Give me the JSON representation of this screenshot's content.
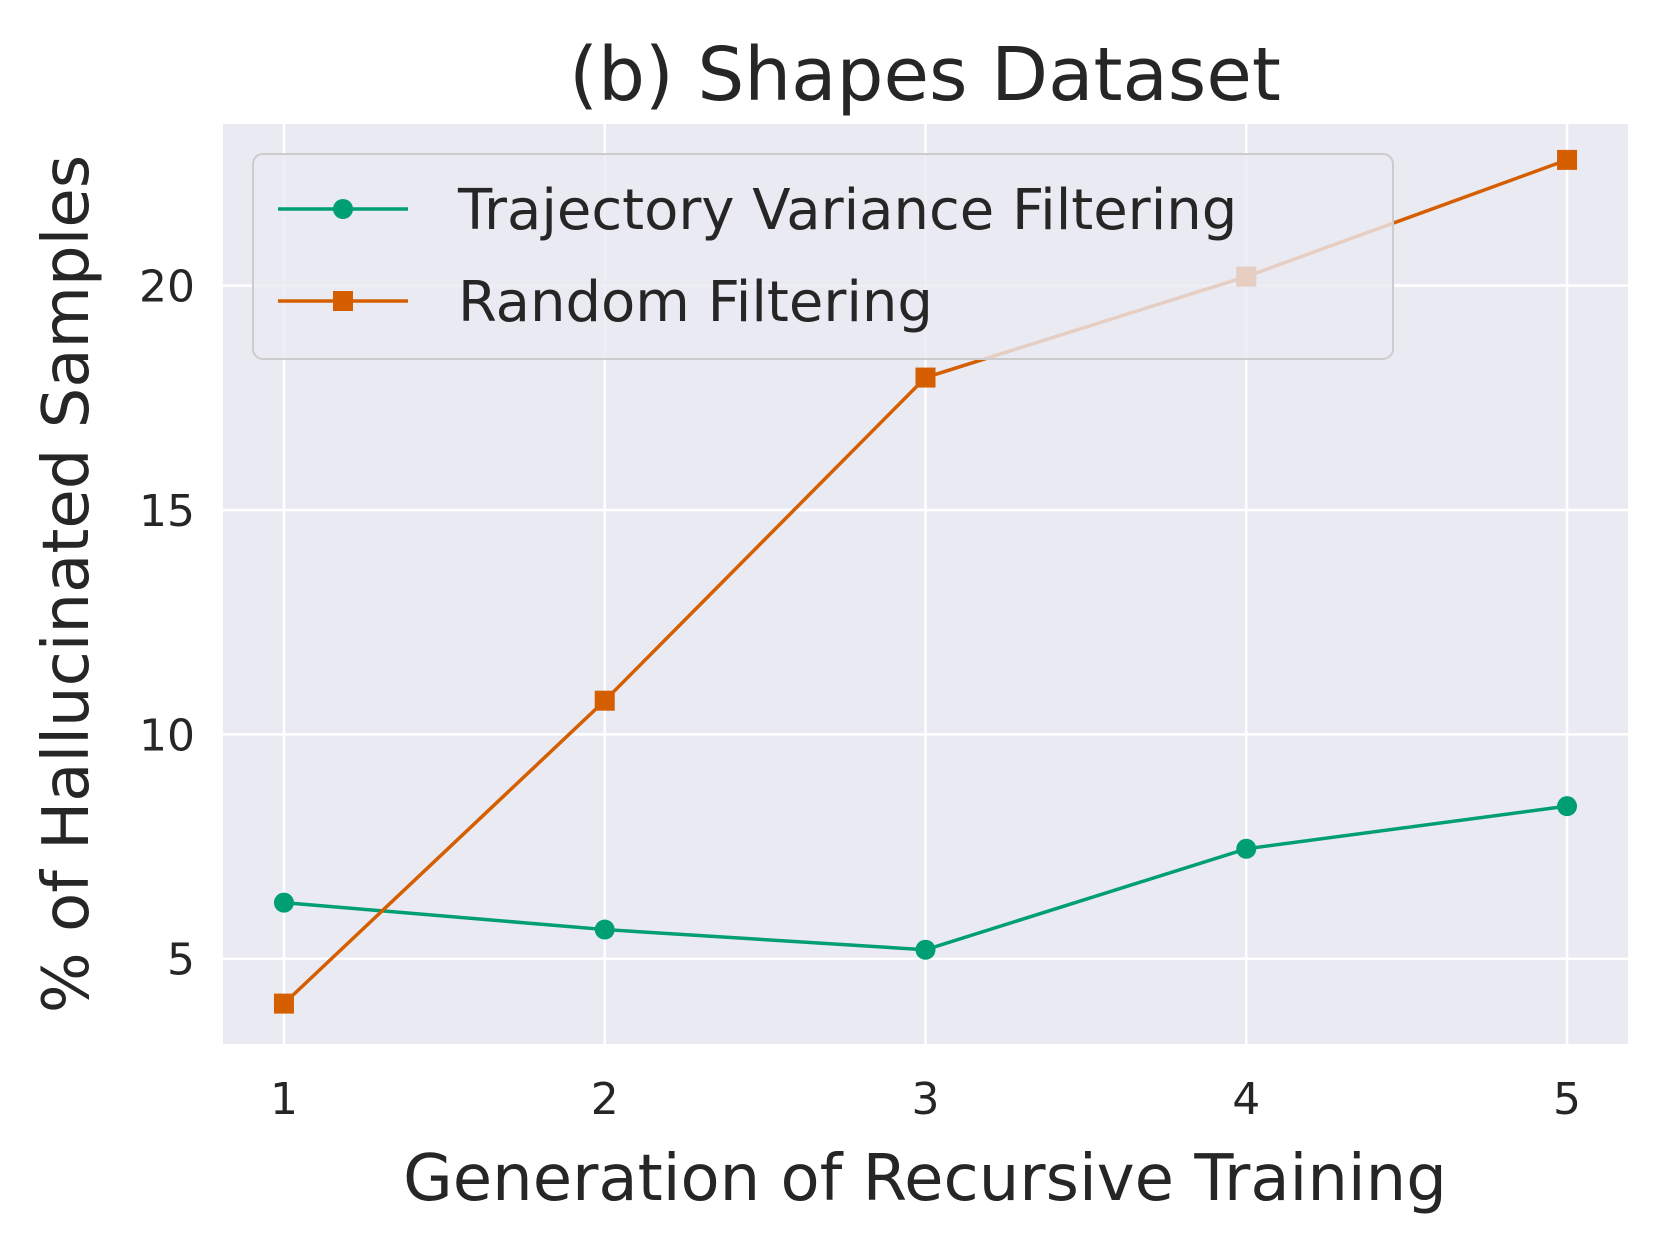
{
  "chart_data": {
    "type": "line",
    "title": "(b) Shapes Dataset",
    "xlabel": "Generation of Recursive Training",
    "ylabel": "% of Hallucinated Samples",
    "x": [
      1,
      2,
      3,
      4,
      5
    ],
    "xticks": [
      "1",
      "2",
      "3",
      "4",
      "5"
    ],
    "yticks": [
      5,
      10,
      15,
      20
    ],
    "ylim": [
      3.1,
      23.6
    ],
    "xlim": [
      0.81,
      5.19
    ],
    "grid": true,
    "legend_position": "top-left",
    "series": [
      {
        "name": "Trajectory Variance Filtering",
        "values": [
          6.25,
          5.65,
          5.2,
          7.45,
          8.4
        ],
        "color": "#009e73",
        "marker": "circle"
      },
      {
        "name": "Random Filtering",
        "values": [
          4.0,
          10.75,
          17.95,
          20.2,
          22.8
        ],
        "color": "#d55e00",
        "marker": "square"
      }
    ],
    "plot_background": "#eaeaf2",
    "grid_color": "#ffffff"
  }
}
